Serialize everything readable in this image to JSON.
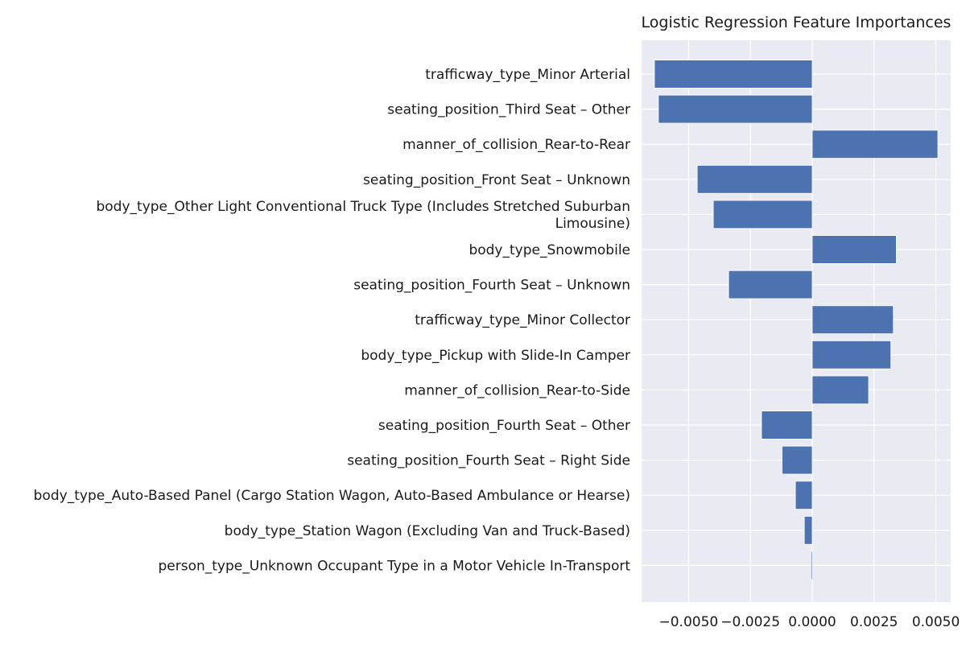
{
  "chart_data": {
    "type": "bar",
    "orientation": "horizontal",
    "title": "Logistic Regression Feature Importances",
    "xlabel": "",
    "ylabel": "",
    "xlim": [
      -0.0069,
      0.0056
    ],
    "grid": true,
    "x_ticks": [
      -0.005,
      -0.0025,
      0.0,
      0.0025,
      0.005
    ],
    "x_tick_labels": [
      "−0.0050",
      "−0.0025",
      "0.0000",
      "0.0025",
      "0.0050"
    ],
    "categories": [
      [
        "trafficway_type_Minor Arterial"
      ],
      [
        "seating_position_Third Seat – Other"
      ],
      [
        "manner_of_collision_Rear-to-Rear"
      ],
      [
        "seating_position_Front Seat – Unknown"
      ],
      [
        "body_type_Other Light Conventional Truck Type (Includes Stretched Suburban",
        "Limousine)"
      ],
      [
        "body_type_Snowmobile"
      ],
      [
        "seating_position_Fourth Seat – Unknown"
      ],
      [
        "trafficway_type_Minor Collector"
      ],
      [
        "body_type_Pickup with Slide-In Camper"
      ],
      [
        "manner_of_collision_Rear-to-Side"
      ],
      [
        "seating_position_Fourth Seat – Other"
      ],
      [
        "seating_position_Fourth Seat – Right Side"
      ],
      [
        "body_type_Auto-Based Panel (Cargo Station Wagon, Auto-Based Ambulance or Hearse)"
      ],
      [
        "body_type_Station Wagon (Excluding Van and Truck-Based)"
      ],
      [
        "person_type_Unknown Occupant Type in a Motor Vehicle In-Transport"
      ]
    ],
    "values": [
      -0.00638,
      -0.00622,
      0.00508,
      -0.00465,
      -0.004,
      0.0034,
      -0.00338,
      0.00328,
      0.00318,
      0.00228,
      -0.00205,
      -0.00122,
      -0.00068,
      -0.00032,
      -5e-05
    ],
    "colors": {
      "bar": "#4c72b0",
      "background": "#eaeaf2",
      "grid": "#ffffff"
    }
  }
}
